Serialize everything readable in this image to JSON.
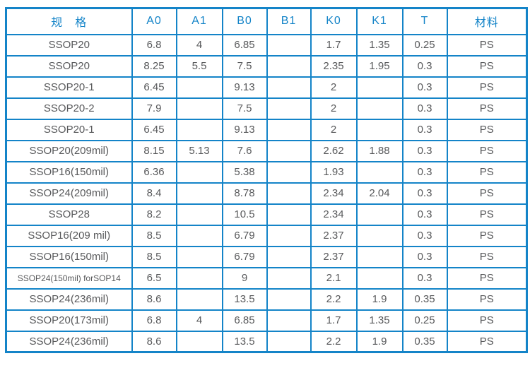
{
  "colors": {
    "border_blue": "#1484c8",
    "header_text": "#1484c8",
    "body_text": "#58595b",
    "page_bg": "#ffffff"
  },
  "table": {
    "header_ids": [
      "spec",
      "a0",
      "a1",
      "b0",
      "b1",
      "k0",
      "k1",
      "t",
      "material"
    ],
    "headers": [
      "规　格",
      "A0",
      "A1",
      "B0",
      "B1",
      "K0",
      "K1",
      "T",
      "材料"
    ],
    "rows": [
      [
        "SSOP20",
        "6.8",
        "4",
        "6.85",
        "",
        "1.7",
        "1.35",
        "0.25",
        "PS"
      ],
      [
        "SSOP20",
        "8.25",
        "5.5",
        "7.5",
        "",
        "2.35",
        "1.95",
        "0.3",
        "PS"
      ],
      [
        "SSOP20-1",
        "6.45",
        "",
        "9.13",
        "",
        "2",
        "",
        "0.3",
        "PS"
      ],
      [
        "SSOP20-2",
        "7.9",
        "",
        "7.5",
        "",
        "2",
        "",
        "0.3",
        "PS"
      ],
      [
        "SSOP20-1",
        "6.45",
        "",
        "9.13",
        "",
        "2",
        "",
        "0.3",
        "PS"
      ],
      [
        "SSOP20(209mil)",
        "8.15",
        "5.13",
        "7.6",
        "",
        "2.62",
        "1.88",
        "0.3",
        "PS"
      ],
      [
        "SSOP16(150mil)",
        "6.36",
        "",
        "5.38",
        "",
        "1.93",
        "",
        "0.3",
        "PS"
      ],
      [
        "SSOP24(209mil)",
        "8.4",
        "",
        "8.78",
        "",
        "2.34",
        "2.04",
        "0.3",
        "PS"
      ],
      [
        "SSOP28",
        "8.2",
        "",
        "10.5",
        "",
        "2.34",
        "",
        "0.3",
        "PS"
      ],
      [
        "SSOP16(209 mil)",
        "8.5",
        "",
        "6.79",
        "",
        "2.37",
        "",
        "0.3",
        "PS"
      ],
      [
        "SSOP16(150mil)",
        "8.5",
        "",
        "6.79",
        "",
        "2.37",
        "",
        "0.3",
        "PS"
      ],
      [
        "SSOP24(150mil) forSOP14",
        "6.5",
        "",
        "9",
        "",
        "2.1",
        "",
        "0.3",
        "PS"
      ],
      [
        "SSOP24(236mil)",
        "8.6",
        "",
        "13.5",
        "",
        "2.2",
        "1.9",
        "0.35",
        "PS"
      ],
      [
        "SSOP20(173mil)",
        "6.8",
        "4",
        "6.85",
        "",
        "1.7",
        "1.35",
        "0.25",
        "PS"
      ],
      [
        "SSOP24(236mil)",
        "8.6",
        "",
        "13.5",
        "",
        "2.2",
        "1.9",
        "0.35",
        "PS"
      ]
    ]
  }
}
